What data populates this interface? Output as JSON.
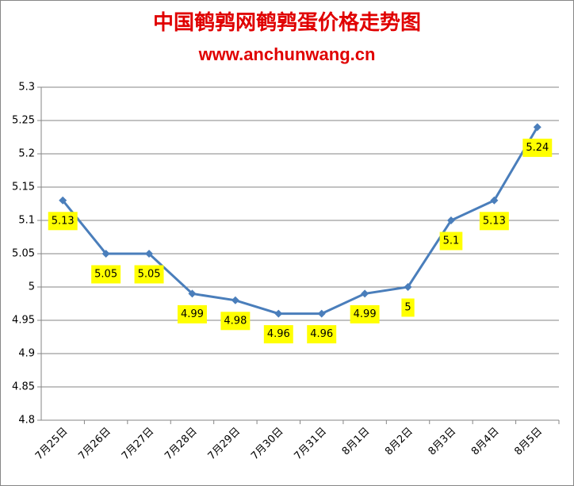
{
  "chart_data": {
    "type": "line",
    "title": "中国鹌鹑网鹌鹑蛋价格走势图",
    "subtitle": "www.anchunwang.cn",
    "categories": [
      "7月25日",
      "7月26日",
      "7月27日",
      "7月28日",
      "7月29日",
      "7月30日",
      "7月31日",
      "8月1日",
      "8月2日",
      "8月3日",
      "8月4日",
      "8月5日"
    ],
    "values": [
      5.13,
      5.05,
      5.05,
      4.99,
      4.98,
      4.96,
      4.96,
      4.99,
      5,
      5.1,
      5.13,
      5.24
    ],
    "color": "#4a7ebb",
    "label_color": "#ffff00",
    "ylim": [
      4.8,
      5.3
    ],
    "yticks": [
      4.8,
      4.85,
      4.9,
      4.95,
      5,
      5.05,
      5.1,
      5.15,
      5.2,
      5.25,
      5.3
    ],
    "grid": true
  }
}
